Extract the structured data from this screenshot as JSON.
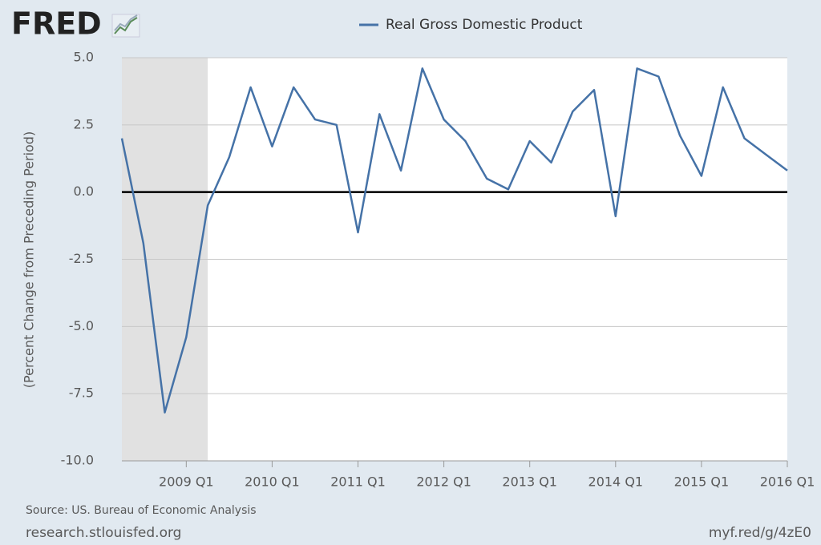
{
  "chart_data": {
    "type": "line",
    "logo": "FRED",
    "legend": "Real Gross Domestic Product",
    "y_label": "(Percent Change from Preceding Period)",
    "source": "Source: US. Bureau of Economic Analysis",
    "footer_left": "research.stlouisfed.org",
    "footer_right": "myf.red/g/4zE0",
    "x": [
      "2008 Q2",
      "2008 Q3",
      "2008 Q4",
      "2009 Q1",
      "2009 Q2",
      "2009 Q3",
      "2009 Q4",
      "2010 Q1",
      "2010 Q2",
      "2010 Q3",
      "2010 Q4",
      "2011 Q1",
      "2011 Q2",
      "2011 Q3",
      "2011 Q4",
      "2012 Q1",
      "2012 Q2",
      "2012 Q3",
      "2012 Q4",
      "2013 Q1",
      "2013 Q2",
      "2013 Q3",
      "2013 Q4",
      "2014 Q1",
      "2014 Q2",
      "2014 Q3",
      "2014 Q4",
      "2015 Q1",
      "2015 Q2",
      "2015 Q3",
      "2015 Q4",
      "2016 Q1"
    ],
    "series": [
      {
        "name": "Real Gross Domestic Product",
        "color": "#4572a7",
        "values": [
          2.0,
          -1.9,
          -8.2,
          -5.4,
          -0.5,
          1.3,
          3.9,
          1.7,
          3.9,
          2.7,
          2.5,
          -1.5,
          2.9,
          0.8,
          4.6,
          2.7,
          1.9,
          0.5,
          0.1,
          1.9,
          1.1,
          3.0,
          3.8,
          -0.9,
          4.6,
          4.3,
          2.1,
          0.6,
          3.9,
          2.0,
          1.4,
          0.8
        ]
      }
    ],
    "xticks": [
      "2009 Q1",
      "2010 Q1",
      "2011 Q1",
      "2012 Q1",
      "2013 Q1",
      "2014 Q1",
      "2015 Q1",
      "2016 Q1"
    ],
    "ylim": [
      -10,
      5
    ],
    "yticks": [
      {
        "value": -10,
        "label": "-10.0"
      },
      {
        "value": -7.5,
        "label": "-7.5"
      },
      {
        "value": -5,
        "label": "-5.0"
      },
      {
        "value": -2.5,
        "label": "-2.5"
      },
      {
        "value": 0,
        "label": "0.0"
      },
      {
        "value": 2.5,
        "label": "2.5"
      },
      {
        "value": 5,
        "label": "5.0"
      }
    ],
    "recession": [
      "2008 Q2",
      "2009 Q2"
    ],
    "grid": true
  }
}
